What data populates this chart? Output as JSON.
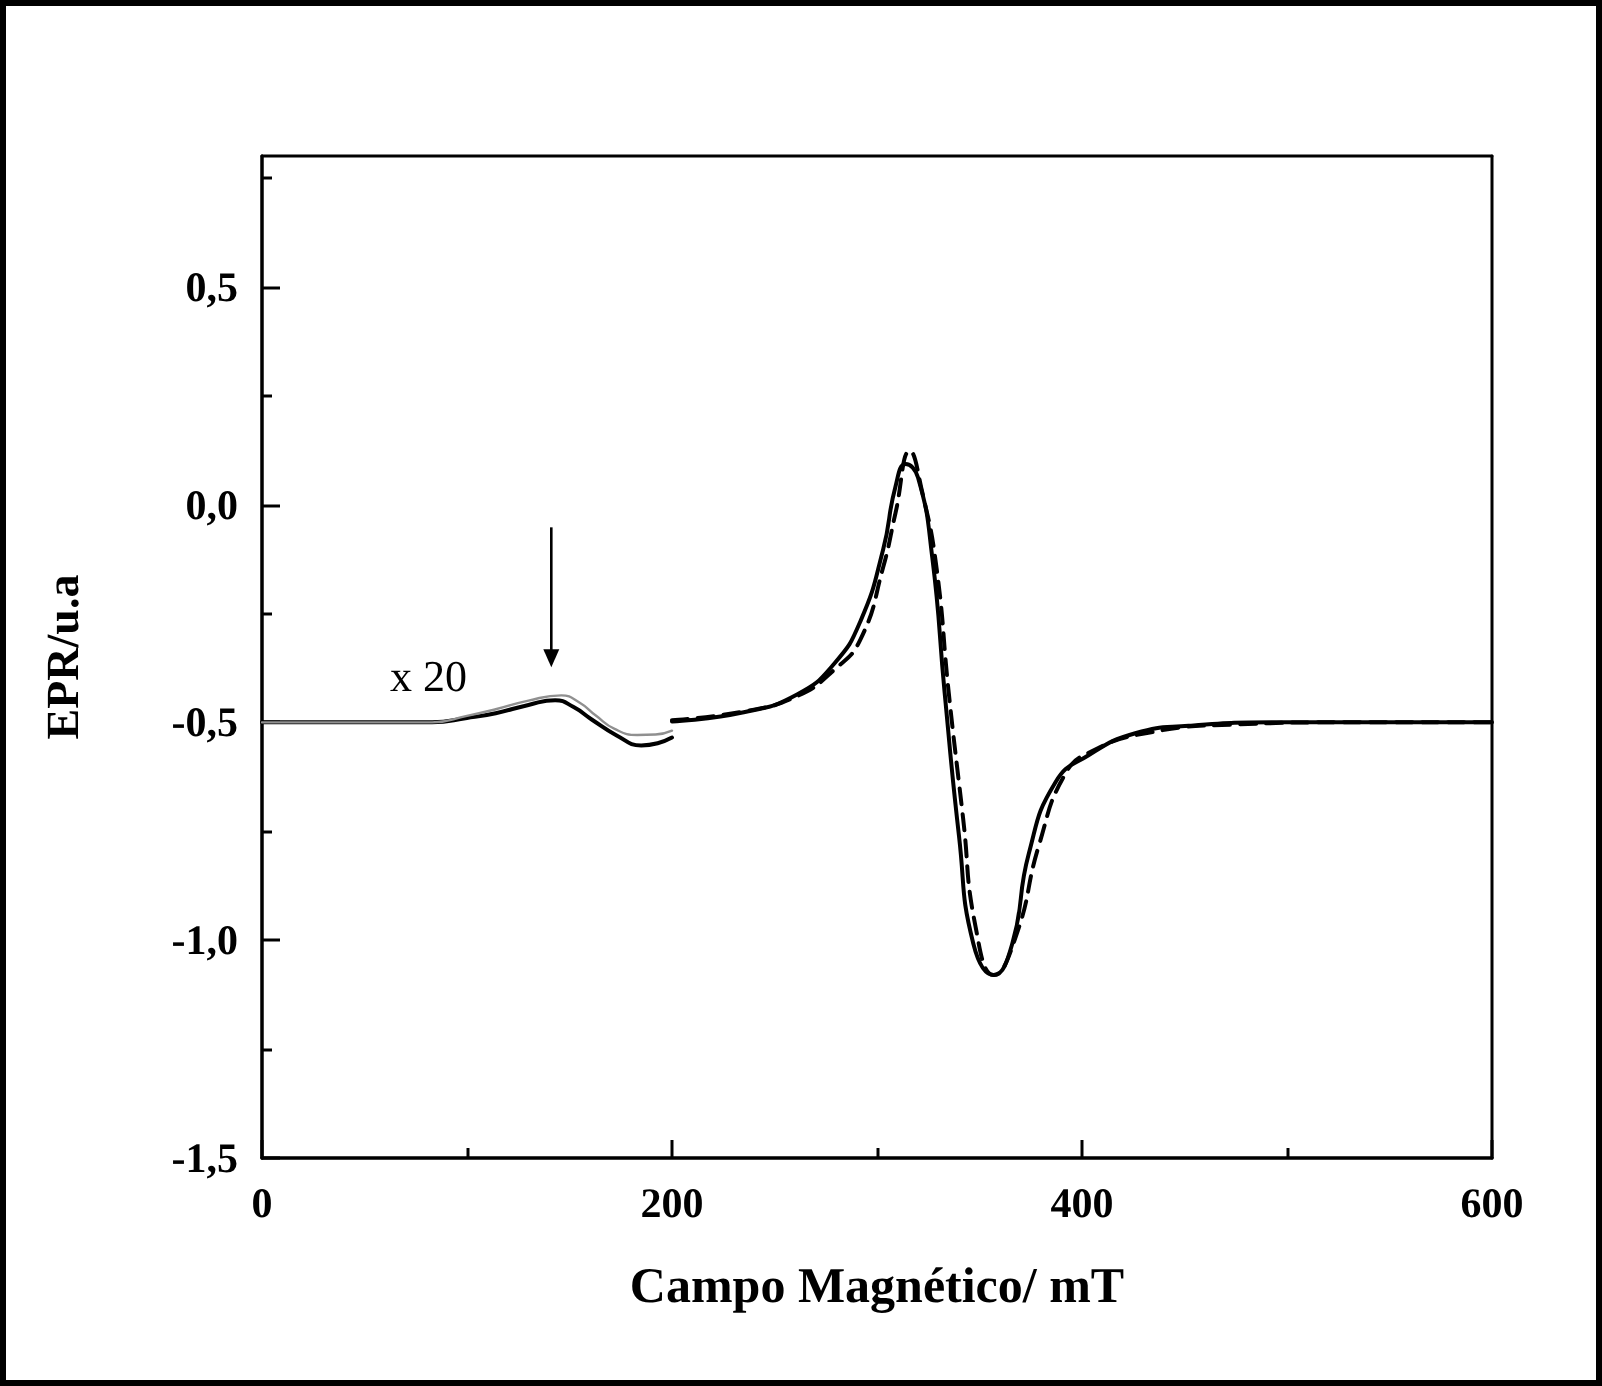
{
  "chart_data": {
    "type": "line",
    "xlabel": "Campo Magnético/ mT",
    "ylabel": "EPR/u.a",
    "xlim": [
      0,
      600
    ],
    "xticks": [
      0,
      {
        "value": 100,
        "label": null
      },
      200,
      {
        "value": 300,
        "label": null
      },
      400,
      {
        "value": 500,
        "label": null
      },
      600
    ],
    "ylim": [
      -1.5,
      0.8
    ],
    "yticks": [
      {
        "value": -1.5,
        "label": "-1,5"
      },
      {
        "value": -1.25,
        "label": null
      },
      {
        "value": -1.0,
        "label": "-1,0"
      },
      {
        "value": -0.75,
        "label": null
      },
      {
        "value": -0.5,
        "label": "-0,5"
      },
      {
        "value": -0.25,
        "label": null
      },
      {
        "value": 0.0,
        "label": "0,0"
      },
      {
        "value": 0.25,
        "label": null
      },
      {
        "value": 0.5,
        "label": "0,5"
      },
      {
        "value": 0.75,
        "label": null
      }
    ],
    "grid": false,
    "marker": "none",
    "series": [
      {
        "color": "#000000",
        "line_style": "solid",
        "x": [
          0,
          40,
          83,
          100,
          114,
          130,
          143,
          152,
          161,
          173,
          185,
          193,
          200
        ],
        "values": [
          -0.5,
          -0.5,
          -0.5,
          -0.49,
          -0.479,
          -0.46,
          -0.449,
          -0.465,
          -0.494,
          -0.53,
          -0.553,
          -0.548,
          -0.535
        ]
      },
      {
        "color": "#909090",
        "line_style": "solid",
        "x": [
          0,
          40,
          83,
          100,
          114,
          130,
          146,
          155,
          163,
          172,
          183,
          192,
          200
        ],
        "values": [
          -0.5,
          -0.5,
          -0.5,
          -0.485,
          -0.47,
          -0.45,
          -0.438,
          -0.455,
          -0.485,
          -0.515,
          -0.529,
          -0.528,
          -0.519
        ]
      },
      {
        "color": "#000000",
        "line_style": "solid",
        "x": [
          200,
          235,
          261,
          279,
          292,
          303,
          309,
          314,
          320,
          327,
          333,
          340,
          347,
          357,
          366,
          374,
          387,
          403,
          426,
          452,
          496,
          550,
          600
        ],
        "values": [
          -0.498,
          -0.477,
          -0.436,
          -0.366,
          -0.267,
          -0.103,
          0.041,
          0.093,
          0.062,
          -0.123,
          -0.432,
          -0.761,
          -1.008,
          -1.08,
          -1.008,
          -0.802,
          -0.638,
          -0.576,
          -0.525,
          -0.508,
          -0.5,
          -0.5,
          -0.5
        ]
      },
      {
        "color": "#000000",
        "line_style": "dashed",
        "x": [
          200,
          235,
          261,
          279,
          292,
          303,
          309,
          316,
          322,
          329,
          335,
          342,
          348,
          357,
          368,
          379,
          392,
          405,
          431,
          474,
          530,
          600
        ],
        "values": [
          -0.495,
          -0.475,
          -0.44,
          -0.38,
          -0.309,
          -0.144,
          -0.02,
          0.123,
          0.03,
          -0.144,
          -0.432,
          -0.72,
          -0.967,
          -1.08,
          -0.988,
          -0.782,
          -0.617,
          -0.566,
          -0.525,
          -0.505,
          -0.5,
          -0.5
        ]
      }
    ],
    "annotations": [
      "x 20"
    ]
  }
}
